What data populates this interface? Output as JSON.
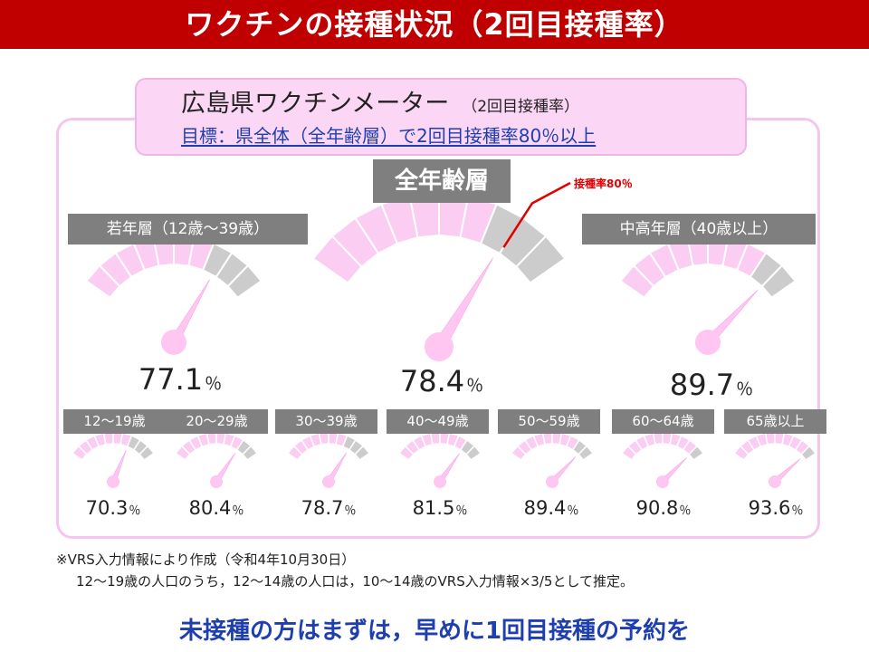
{
  "banner": {
    "title": "ワクチンの接種状況（2回目接種率）"
  },
  "header": {
    "title": "広島県ワクチンメーター",
    "title_sub": "（2回目接種率）",
    "target": "目標：県全体（全年齢層）で2回目接種率80％以上"
  },
  "target_marker": {
    "label": "接種率80％",
    "value": 80
  },
  "colors": {
    "filled": "#fbcdf3",
    "unfilled": "#cccccc",
    "needle": "#ffc6f2",
    "target_line": "#e00000",
    "banner": "#c00000",
    "footer_text": "#1f3fb0"
  },
  "meters_main": [
    {
      "label": "全年齢層",
      "value": 78.4,
      "value_text": "78.4",
      "unit": "％"
    },
    {
      "label": "若年層（12歳～39歳）",
      "value": 77.1,
      "value_text": "77.1",
      "unit": "％"
    },
    {
      "label": "中高年層（40歳以上）",
      "value": 89.7,
      "value_text": "89.7",
      "unit": "％"
    }
  ],
  "meters_small": [
    {
      "label": "12～19歳",
      "value": 70.3,
      "value_text": "70.3",
      "unit": "％"
    },
    {
      "label": "20～29歳",
      "value": 80.4,
      "value_text": "80.4",
      "unit": "％"
    },
    {
      "label": "30～39歳",
      "value": 78.7,
      "value_text": "78.7",
      "unit": "％"
    },
    {
      "label": "40～49歳",
      "value": 81.5,
      "value_text": "81.5",
      "unit": "％"
    },
    {
      "label": "50～59歳",
      "value": 89.4,
      "value_text": "89.4",
      "unit": "％"
    },
    {
      "label": "60～64歳",
      "value": 90.8,
      "value_text": "90.8",
      "unit": "％"
    },
    {
      "label": "65歳以上",
      "value": 93.6,
      "value_text": "93.6",
      "unit": "％"
    }
  ],
  "notes": {
    "line1": "※VRS入力情報により作成（令和4年10月30日）",
    "line2": "12～19歳の人口のうち，12～14歳の人口は，10～14歳のVRS入力情報×3/5として推定。"
  },
  "footer": {
    "text": "未接種の方はまずは，早めに1回目接種の予約を"
  }
}
